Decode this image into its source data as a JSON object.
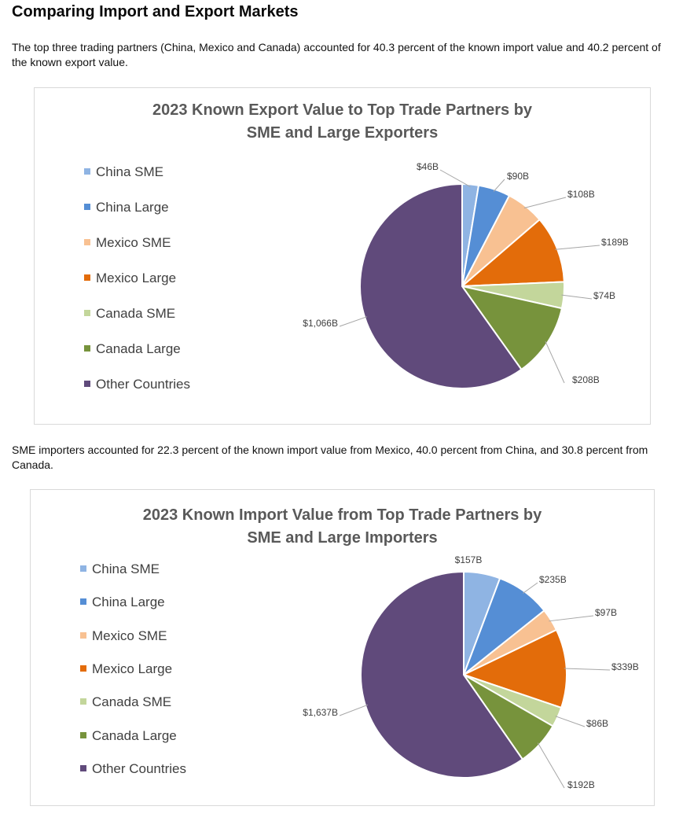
{
  "page": {
    "heading": "Comparing Import and Export Markets",
    "para1": "The top three trading partners (China, Mexico and Canada) accounted for 40.3 percent of the known import value and 40.2 percent of the known export value.",
    "para2": "SME importers accounted for 22.3 percent of the known import value from Mexico, 40.0 percent from China, and 30.8 percent from Canada."
  },
  "colors": {
    "China SME": "#8FB4E3",
    "China Large": "#558ED5",
    "Mexico SME": "#F8C192",
    "Mexico Large": "#E36C0A",
    "Canada SME": "#C3D69B",
    "Canada Large": "#77933C",
    "Other Countries": "#604A7B"
  },
  "chart_data": [
    {
      "type": "pie",
      "title": "2023 Known Export Value to Top Trade Partners by SME and Large Exporters",
      "title_line1": "2023 Known Export Value to Top Trade Partners by",
      "title_line2": "SME and Large Exporters",
      "legend_position": "left",
      "categories": [
        "China SME",
        "China Large",
        "Mexico SME",
        "Mexico Large",
        "Canada SME",
        "Canada Large",
        "Other Countries"
      ],
      "values": [
        46,
        90,
        108,
        189,
        74,
        208,
        1066
      ],
      "labels": [
        "$46B",
        "$90B",
        "$108B",
        "$189B",
        "$74B",
        "$208B",
        "$1,066B"
      ],
      "unit": "billion USD"
    },
    {
      "type": "pie",
      "title": "2023 Known Import Value from Top Trade Partners by SME and Large Importers",
      "title_line1": "2023 Known Import Value from Top Trade Partners by",
      "title_line2": "SME and Large Importers",
      "legend_position": "left",
      "categories": [
        "China SME",
        "China Large",
        "Mexico SME",
        "Mexico Large",
        "Canada SME",
        "Canada Large",
        "Other Countries"
      ],
      "values": [
        157,
        235,
        97,
        339,
        86,
        192,
        1637
      ],
      "labels": [
        "$157B",
        "$235B",
        "$97B",
        "$339B",
        "$86B",
        "$192B",
        "$1,637B"
      ],
      "unit": "billion USD"
    }
  ]
}
